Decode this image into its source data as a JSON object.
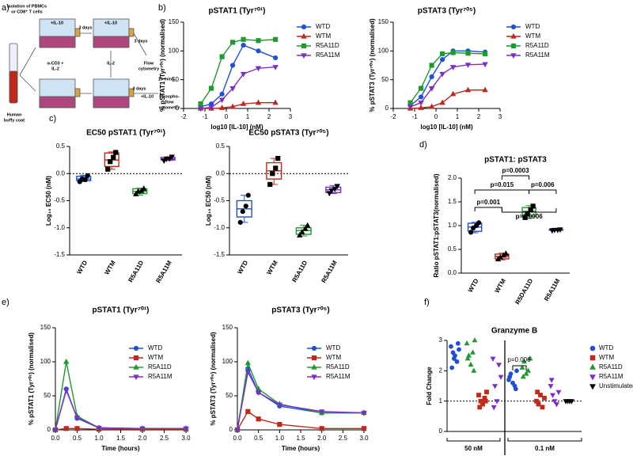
{
  "panel_labels": [
    "a)",
    "b)",
    "c)",
    "d)",
    "e)",
    "f)"
  ],
  "schematic": {
    "texts": [
      "Isolation of PBMCs",
      "or CD8⁺ T cells",
      "Human",
      "buffy coat",
      "+IL-10",
      "3 days",
      "+IL-10",
      "α-CD3 +",
      "IL-2",
      "IL-2",
      "3 days",
      "Flow",
      "cytometry",
      "3 days",
      "15 mins",
      "+IL-10",
      "Phospho-",
      "flow",
      "cytometry"
    ]
  },
  "chart_data": [
    {
      "type": "line",
      "title": "pSTAT1 (Tyr⁷⁰¹)",
      "xlabel": "log10 [IL-10] (nM)",
      "ylabel": "% pSTAT1 (Tyr⁷⁰¹) (normalised)",
      "x": [
        -1.2,
        -0.7,
        -0.2,
        0.3,
        0.8,
        1.5,
        2.3
      ],
      "xlim": [
        -2,
        3
      ],
      "xticks": [
        -2,
        -1,
        0,
        1,
        2,
        3
      ],
      "ylim": [
        0,
        150
      ],
      "yticks": [
        0,
        50,
        100,
        150
      ],
      "legend": "right",
      "series": [
        {
          "name": "WTD",
          "color": "#1f4fd6",
          "marker": "circle",
          "values": [
            3,
            8,
            25,
            75,
            110,
            100,
            88
          ]
        },
        {
          "name": "WTM",
          "color": "#c0281b",
          "marker": "triangle",
          "values": [
            0,
            0,
            1,
            3,
            8,
            10,
            10
          ]
        },
        {
          "name": "R5A11D",
          "color": "#1e9a2f",
          "marker": "square",
          "values": [
            8,
            35,
            90,
            115,
            120,
            118,
            120
          ]
        },
        {
          "name": "R5A11M",
          "color": "#7b2fc9",
          "marker": "triangle-down",
          "values": [
            0,
            2,
            15,
            35,
            60,
            70,
            72
          ]
        }
      ]
    },
    {
      "type": "line",
      "title": "pSTAT3 (Tyr⁷⁰⁵)",
      "xlabel": "log10 [IL-10] (nM)",
      "ylabel": "% pSTAT3 (Tyr⁷⁰⁵) (normalised)",
      "x": [
        -1.2,
        -0.7,
        -0.2,
        0.3,
        0.8,
        1.5,
        2.3
      ],
      "xlim": [
        -2,
        3
      ],
      "xticks": [
        -2,
        -1,
        0,
        1,
        2,
        3
      ],
      "ylim": [
        0,
        150
      ],
      "yticks": [
        0,
        50,
        100,
        150
      ],
      "legend": "right",
      "series": [
        {
          "name": "WTD",
          "color": "#1f4fd6",
          "marker": "circle",
          "values": [
            5,
            20,
            55,
            85,
            100,
            100,
            98
          ]
        },
        {
          "name": "WTM",
          "color": "#c0281b",
          "marker": "triangle",
          "values": [
            0,
            1,
            3,
            10,
            25,
            32,
            32
          ]
        },
        {
          "name": "R5A11D",
          "color": "#1e9a2f",
          "marker": "square",
          "values": [
            10,
            35,
            75,
            95,
            97,
            96,
            95
          ]
        },
        {
          "name": "R5A11M",
          "color": "#7b2fc9",
          "marker": "triangle-down",
          "values": [
            3,
            10,
            35,
            60,
            72,
            76,
            77
          ]
        }
      ]
    },
    {
      "type": "box",
      "title": "EC50 pSTAT1 (Tyr⁷⁰¹)",
      "ylabel": "Log₁₀ EC50 (nM)",
      "refline": 0,
      "categories": [
        "WTD",
        "WTM",
        "R5A11D",
        "R5A11M"
      ],
      "ylim": [
        -1.5,
        0.5
      ],
      "yticks": [
        -1.5,
        {
          "value": -1,
          "label": "-1.0"
        },
        -0.5,
        {
          "value": 0,
          "label": "0.0"
        },
        0.5
      ],
      "boxes": [
        {
          "color": "#1f4fd6",
          "marker": "circle",
          "min": -0.15,
          "q1": -0.13,
          "median": -0.1,
          "q3": -0.05,
          "max": -0.03,
          "points": [
            -0.15,
            -0.1,
            -0.11,
            -0.04
          ]
        },
        {
          "color": "#c0281b",
          "marker": "square",
          "min": 0.08,
          "q1": 0.13,
          "median": 0.25,
          "q3": 0.38,
          "max": 0.4,
          "points": [
            0.08,
            0.22,
            0.3,
            0.39
          ]
        },
        {
          "color": "#1e9a2f",
          "marker": "triangle",
          "min": -0.4,
          "q1": -0.37,
          "median": -0.33,
          "q3": -0.28,
          "max": -0.27,
          "points": [
            -0.38,
            -0.33,
            -0.32,
            -0.28
          ]
        },
        {
          "color": "#7b2fc9",
          "marker": "triangle-down",
          "min": 0.24,
          "q1": 0.25,
          "median": 0.27,
          "q3": 0.3,
          "max": 0.31,
          "points": [
            0.24,
            0.27,
            0.28,
            0.31
          ]
        }
      ]
    },
    {
      "type": "box",
      "title": "EC50 pSTAT3 (Tyr⁷⁰⁵)",
      "ylabel": "Log₁₀ EC50 (nM)",
      "refline": 0,
      "categories": [
        "WTD",
        "WTM",
        "R5A11D",
        "R5A11M"
      ],
      "ylim": [
        -1.5,
        0.5
      ],
      "yticks": [
        -1.5,
        {
          "value": -1,
          "label": "-1.0"
        },
        -0.5,
        {
          "value": 0,
          "label": "0.0"
        },
        0.5
      ],
      "boxes": [
        {
          "color": "#1f4fd6",
          "marker": "circle",
          "min": -0.9,
          "q1": -0.8,
          "median": -0.65,
          "q3": -0.5,
          "max": -0.4,
          "points": [
            -0.9,
            -0.7,
            -0.6,
            -0.4
          ]
        },
        {
          "color": "#c0281b",
          "marker": "square",
          "min": -0.2,
          "q1": -0.1,
          "median": 0.05,
          "q3": 0.2,
          "max": 0.28,
          "points": [
            -0.2,
            0.0,
            0.1,
            0.28
          ]
        },
        {
          "color": "#1e9a2f",
          "marker": "triangle",
          "min": -1.15,
          "q1": -1.12,
          "median": -1.05,
          "q3": -1.0,
          "max": -0.95,
          "points": [
            -1.14,
            -1.08,
            -1.02,
            -0.96
          ]
        },
        {
          "color": "#7b2fc9",
          "marker": "triangle-down",
          "min": -0.37,
          "q1": -0.35,
          "median": -0.3,
          "q3": -0.25,
          "max": -0.22,
          "points": [
            -0.36,
            -0.31,
            -0.28,
            -0.23
          ]
        }
      ]
    },
    {
      "type": "box",
      "title": "pSTAT1: pSTAT3",
      "ylabel": "Ratio pSTAT1:pSTAT3(normalised)",
      "categories": [
        "WTD",
        "WTM",
        "R5DA11D",
        "R5A11M"
      ],
      "ylim": [
        0,
        2
      ],
      "yticks": [
        {
          "value": 0,
          "label": "0.0"
        },
        0.5,
        {
          "value": 1,
          "label": "1.0"
        },
        1.5,
        {
          "value": 2,
          "label": "2.0"
        }
      ],
      "annotations": [
        "p=0.015",
        "p=0.001",
        "p=0.0003",
        "p=0.006",
        "p=0.0006"
      ],
      "boxes": [
        {
          "color": "#1f4fd6",
          "marker": "circle",
          "min": 0.85,
          "q1": 0.88,
          "median": 0.97,
          "q3": 1.05,
          "max": 1.07,
          "points": [
            0.86,
            0.95,
            1.0,
            1.06
          ]
        },
        {
          "color": "#c0281b",
          "marker": "triangle",
          "min": 0.28,
          "q1": 0.3,
          "median": 0.35,
          "q3": 0.4,
          "max": 0.42,
          "points": [
            0.29,
            0.33,
            0.37,
            0.41
          ]
        },
        {
          "color": "#1e9a2f",
          "marker": "square",
          "min": 1.15,
          "q1": 1.2,
          "median": 1.3,
          "q3": 1.38,
          "max": 1.42,
          "points": [
            1.17,
            1.25,
            1.33,
            1.41
          ]
        },
        {
          "color": "#7b2fc9",
          "marker": "triangle-down",
          "min": 0.9,
          "q1": 0.9,
          "median": 0.91,
          "q3": 0.92,
          "max": 0.93,
          "points": [
            0.9,
            0.91,
            0.91,
            0.92
          ]
        }
      ]
    },
    {
      "type": "line",
      "title": "pSTAT1 (Tyr⁷⁰¹)",
      "xlabel": "Time (hours)",
      "ylabel": "% pSTAT1 (Tyr⁷⁰¹) (normalised)",
      "x": [
        0,
        0.25,
        0.5,
        1,
        2,
        3
      ],
      "xlim": [
        0,
        3
      ],
      "xticks": [
        {
          "value": 0,
          "label": "0.0"
        },
        0.5,
        {
          "value": 1,
          "label": "1.0"
        },
        1.5,
        {
          "value": 2,
          "label": "2.0"
        },
        2.5,
        {
          "value": 3,
          "label": "3.0"
        }
      ],
      "ylim": [
        0,
        150
      ],
      "yticks": [
        0,
        50,
        100,
        150
      ],
      "legend": "upper right",
      "series": [
        {
          "name": "WTD",
          "color": "#1f4fd6",
          "marker": "circle",
          "values": [
            0,
            60,
            17,
            3,
            2,
            2
          ]
        },
        {
          "name": "WTM",
          "color": "#c0281b",
          "marker": "square",
          "values": [
            0,
            2,
            2,
            1,
            1,
            1
          ]
        },
        {
          "name": "R5A11D",
          "color": "#1e9a2f",
          "marker": "triangle",
          "values": [
            0,
            100,
            20,
            3,
            2,
            2
          ]
        },
        {
          "name": "R5A11M",
          "color": "#7b2fc9",
          "marker": "triangle-down",
          "values": [
            0,
            58,
            18,
            3,
            2,
            2
          ]
        }
      ]
    },
    {
      "type": "line",
      "title": "pSTAT3 (Tyr⁷⁰⁵)",
      "xlabel": "Time (hours)",
      "ylabel": "% pSTAT3 (Tyr⁷⁰⁵) (normalised)",
      "x": [
        0,
        0.25,
        0.5,
        1,
        2,
        3
      ],
      "xlim": [
        0,
        3
      ],
      "xticks": [
        {
          "value": 0,
          "label": "0.0"
        },
        0.5,
        {
          "value": 1,
          "label": "1.0"
        },
        1.5,
        {
          "value": 2,
          "label": "2.0"
        },
        2.5,
        {
          "value": 3,
          "label": "3.0"
        }
      ],
      "ylim": [
        0,
        150
      ],
      "yticks": [
        0,
        50,
        100,
        150
      ],
      "legend": "upper right",
      "series": [
        {
          "name": "WTD",
          "color": "#1f4fd6",
          "marker": "circle",
          "values": [
            0,
            90,
            55,
            35,
            25,
            25
          ]
        },
        {
          "name": "WTM",
          "color": "#c0281b",
          "marker": "square",
          "values": [
            0,
            27,
            16,
            8,
            2,
            2
          ]
        },
        {
          "name": "R5A11D",
          "color": "#1e9a2f",
          "marker": "triangle",
          "values": [
            0,
            98,
            60,
            38,
            25,
            25
          ]
        },
        {
          "name": "R5A11M",
          "color": "#7b2fc9",
          "marker": "triangle-down",
          "values": [
            0,
            85,
            55,
            37,
            27,
            25
          ]
        }
      ]
    },
    {
      "type": "strip",
      "title": "Granzyme B",
      "ylabel": "Fold Change",
      "refline": 1,
      "categories": [
        "50 nM",
        "0.1 nM"
      ],
      "ylim": [
        0,
        3
      ],
      "yticks": [
        0,
        1,
        2,
        3
      ],
      "legend": "right",
      "annotations": [
        "p=0.006"
      ],
      "series": [
        {
          "name": "WTD",
          "color": "#1f4fd6",
          "marker": "circle",
          "values": [
            [
              2.8,
              2.6,
              2.5,
              2.3,
              2.7,
              2.1,
              2.9,
              2.4
            ],
            [
              1.7,
              1.9,
              1.6,
              1.5,
              2.0,
              1.8,
              1.4
            ]
          ]
        },
        {
          "name": "WTM",
          "color": "#c0281b",
          "marker": "square",
          "values": [
            [
              1.2,
              1.0,
              0.9,
              1.1,
              1.3,
              0.8,
              1.0
            ],
            [
              1.0,
              0.9,
              1.2,
              0.8,
              1.1,
              1.3
            ]
          ]
        },
        {
          "name": "R5A11D",
          "color": "#1e9a2f",
          "marker": "triangle",
          "values": [
            [
              2.9,
              2.5,
              2.2,
              2.6,
              3.0,
              2.4,
              2.0
            ],
            [
              2.1,
              2.3,
              1.9,
              2.0,
              2.4,
              1.8
            ]
          ]
        },
        {
          "name": "R5A11M",
          "color": "#7b2fc9",
          "marker": "triangle-down",
          "values": [
            [
              2.4,
              1.5,
              1.0,
              2.2,
              1.8,
              0.8
            ],
            [
              1.5,
              1.2,
              1.0,
              0.9,
              1.3,
              1.7
            ]
          ]
        },
        {
          "name": "Unstimulated",
          "color": "#000000",
          "marker": "triangle-down",
          "values": [
            null,
            [
              1,
              1,
              1,
              1
            ]
          ]
        }
      ]
    }
  ]
}
